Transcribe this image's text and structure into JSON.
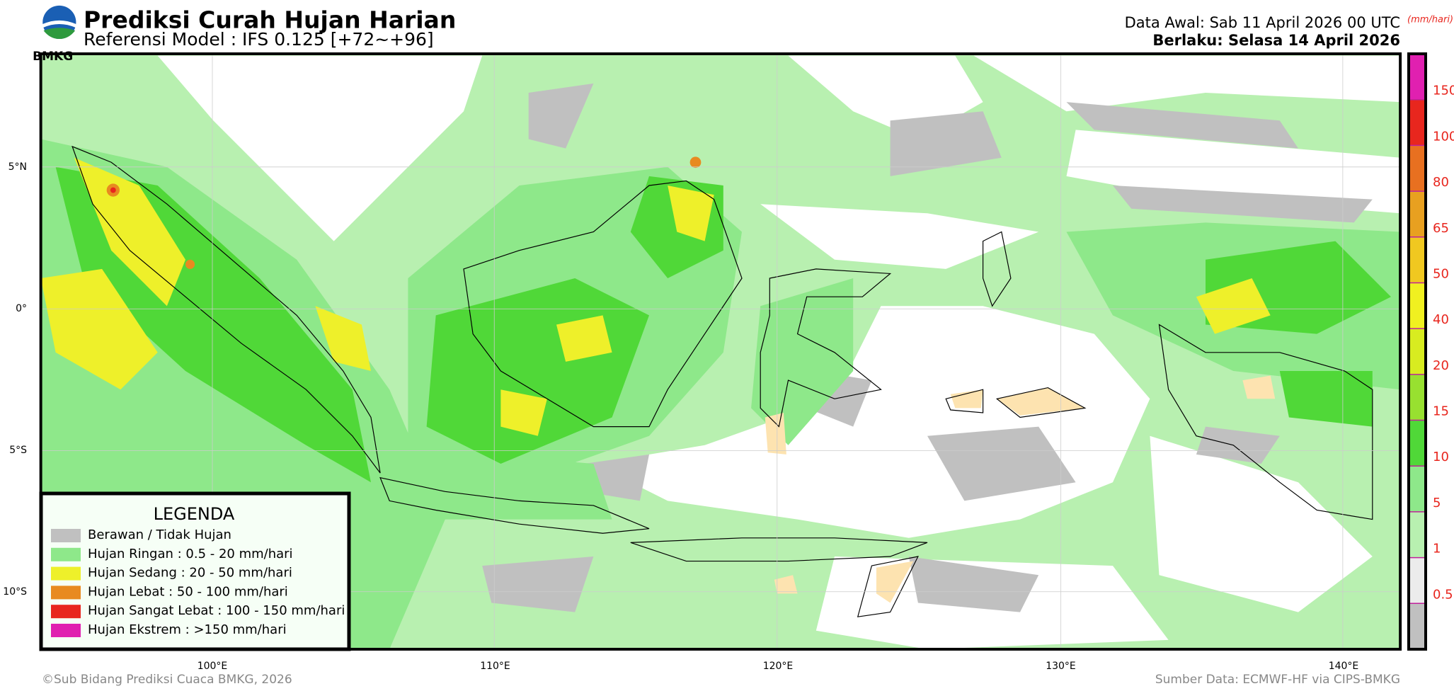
{
  "header": {
    "title": "Prediksi Curah Hujan Harian",
    "subtitle": "Referensi Model : IFS 0.125 [+72~+96]",
    "logo_text": "BMKG",
    "init_time": "Data Awal: Sab 11 April 2026 00 UTC",
    "valid_time": "Berlaku: Selasa 14 April 2026",
    "unit": "(mm/hari)"
  },
  "map": {
    "lat_labels": [
      "5°N",
      "0°",
      "5°S",
      "10°S"
    ],
    "lon_labels": [
      "100°E",
      "110°E",
      "120°E",
      "130°E",
      "140°E"
    ]
  },
  "legend": {
    "title": "LEGENDA",
    "items": [
      {
        "label": "Berawan / Tidak Hujan",
        "color": "#c0c0c0"
      },
      {
        "label": "Hujan Ringan : 0.5 - 20 mm/hari",
        "color": "#8ee88a"
      },
      {
        "label": "Hujan Sedang : 20 - 50 mm/hari",
        "color": "#eef02a"
      },
      {
        "label": "Hujan Lebat : 50 - 100 mm/hari",
        "color": "#e88a20"
      },
      {
        "label": "Hujan Sangat Lebat : 100 - 150 mm/hari",
        "color": "#e8261e"
      },
      {
        "label": "Hujan Ekstrem : >150 mm/hari",
        "color": "#e020b0"
      }
    ]
  },
  "colorbar": {
    "colors": [
      "#c0c0c0",
      "#ececec",
      "#b8f0b0",
      "#8ee88a",
      "#50d838",
      "#98e030",
      "#d8ec20",
      "#f0f020",
      "#f0c820",
      "#e8a020",
      "#e87020",
      "#e8261e",
      "#e020b0"
    ],
    "ticks": [
      0.5,
      1,
      5,
      10,
      15,
      20,
      40,
      50,
      65,
      80,
      100,
      150
    ]
  },
  "footer": {
    "credit": "©Sub Bidang Prediksi Cuaca BMKG, 2026",
    "source": "Sumber Data: ECMWF-HF via CIPS-BMKG"
  }
}
